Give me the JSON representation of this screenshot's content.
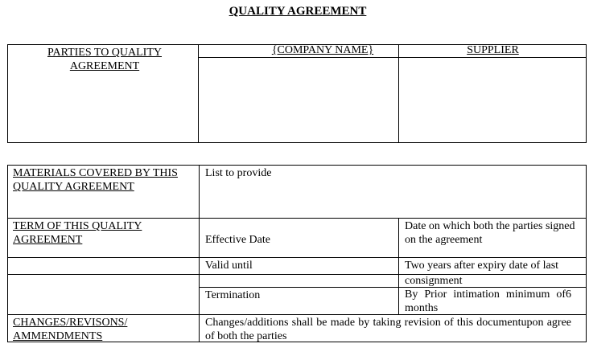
{
  "title": "QUALITY AGREEMENT",
  "parties_table": {
    "label": "PARTIES TO QUALITY AGREEMENT",
    "columns": [
      "{COMPANY NAME}",
      "SUPPLIER"
    ]
  },
  "terms_table": {
    "materials_label": "MATERIALS COVERED BY THIS QUALITY AGREEMENT",
    "materials_value": "List to provide",
    "term_label": "TERM OF THIS QUALITY AGREEMENT",
    "effective_date_label": "Effective Date",
    "effective_date_value": "Date on  which both the  parties signed on the agreement",
    "valid_until_label": "Valid until",
    "valid_until_value_1": "Two years after expiry date of last",
    "valid_until_value_2": "consignment",
    "termination_label": "Termination",
    "termination_value": "By Prior intimation minimum of6 months",
    "changes_label": "CHANGES/REVISONS/ AMMENDMENTS",
    "changes_value": "Changes/additions shall be made by taking revision of this documentupon agree of both the parties"
  }
}
